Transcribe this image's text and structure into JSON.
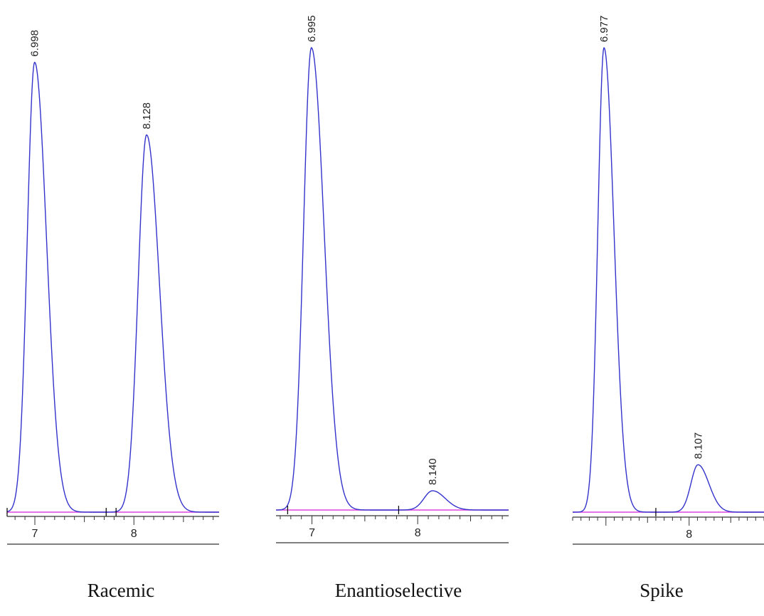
{
  "chart_data": [
    {
      "type": "line",
      "title": "Racemic",
      "x_ticks_labeled": [
        "7",
        "8"
      ],
      "xlim": [
        6.72,
        8.86
      ],
      "ylim": [
        0,
        1.0
      ],
      "integration_marks": [
        6.72,
        7.72,
        7.82
      ],
      "peaks": [
        {
          "label": "6.998",
          "rt": 6.998,
          "height": 0.93,
          "sigma_left": 0.075,
          "sigma_right": 0.12
        },
        {
          "label": "8.128",
          "rt": 8.128,
          "height": 0.78,
          "sigma_left": 0.085,
          "sigma_right": 0.13
        }
      ]
    },
    {
      "type": "line",
      "title": "Enantioselective",
      "x_ticks_labeled": [
        "7",
        "8"
      ],
      "xlim": [
        6.66,
        8.86
      ],
      "ylim": [
        0,
        1.0
      ],
      "integration_marks": [
        6.77,
        7.82
      ],
      "peaks": [
        {
          "label": "6.995",
          "rt": 6.995,
          "height": 0.96,
          "sigma_left": 0.075,
          "sigma_right": 0.12
        },
        {
          "label": "8.140",
          "rt": 8.14,
          "height": 0.04,
          "sigma_left": 0.08,
          "sigma_right": 0.12
        }
      ]
    },
    {
      "type": "line",
      "title": "Spike",
      "x_ticks_labeled": [
        "8"
      ],
      "xlim": [
        6.6,
        8.9
      ],
      "ylim": [
        0,
        1.0
      ],
      "integration_marks": [
        7.6
      ],
      "peaks": [
        {
          "label": "6.977",
          "rt": 6.977,
          "height": 0.96,
          "sigma_left": 0.075,
          "sigma_right": 0.12
        },
        {
          "label": "8.107",
          "rt": 8.107,
          "height": 0.098,
          "sigma_left": 0.085,
          "sigma_right": 0.13
        }
      ]
    }
  ],
  "colors": {
    "trace": "#3333cc",
    "baseline": "#dd44dd",
    "axis": "#333333"
  }
}
